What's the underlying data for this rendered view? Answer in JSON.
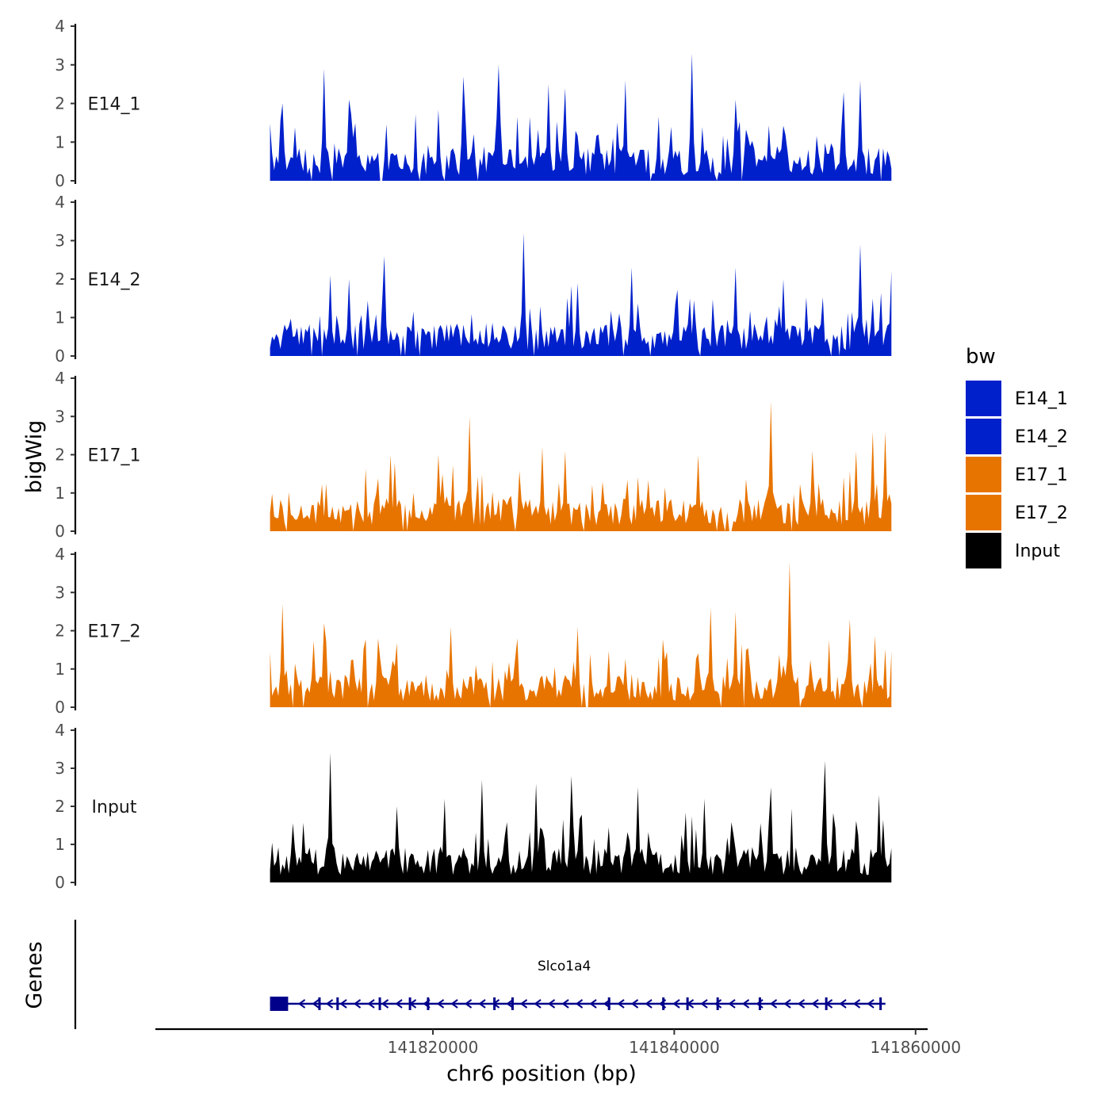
{
  "chart_data": {
    "type": "area",
    "title": "",
    "ylabel": "bigWig",
    "xlabel": "chr6 position (bp)",
    "chromosome": "chr6",
    "xlim": [
      141797000,
      141861000
    ],
    "data_x_range": [
      141806500,
      141858000
    ],
    "ylim": [
      0,
      4
    ],
    "y_ticks": [
      0,
      1,
      2,
      3,
      4
    ],
    "y_tick_labels": [
      "0",
      "1",
      "2",
      "3",
      "4"
    ],
    "x_ticks": [
      141820000,
      141840000,
      141860000
    ],
    "x_tick_labels": [
      "141820000",
      "141840000",
      "141860000"
    ],
    "legend": {
      "title": "bw",
      "position": "right",
      "entries": [
        {
          "label": "E14_1",
          "color": "#0020CC"
        },
        {
          "label": "E14_2",
          "color": "#0020CC"
        },
        {
          "label": "E17_1",
          "color": "#E87400"
        },
        {
          "label": "E17_2",
          "color": "#E87400"
        },
        {
          "label": "Input",
          "color": "#000000"
        }
      ]
    },
    "tracks": [
      {
        "name": "E14_1",
        "color": "#0020CC",
        "bins": 300,
        "max_value": 3.3,
        "peaks": [
          [
            141807500,
            2.0
          ],
          [
            141811000,
            2.9
          ],
          [
            141813000,
            2.1
          ],
          [
            141822500,
            2.7
          ],
          [
            141825500,
            3.0
          ],
          [
            141829500,
            2.5
          ],
          [
            141831000,
            2.4
          ],
          [
            141836000,
            2.6
          ],
          [
            141841500,
            3.3
          ],
          [
            141845000,
            2.1
          ],
          [
            141855500,
            2.6
          ],
          [
            141854000,
            2.3
          ]
        ]
      },
      {
        "name": "E14_2",
        "color": "#0020CC",
        "bins": 300,
        "max_value": 3.2,
        "peaks": [
          [
            141816000,
            2.6
          ],
          [
            141811500,
            2.1
          ],
          [
            141813000,
            2.0
          ],
          [
            141827500,
            3.2
          ],
          [
            141832000,
            1.9
          ],
          [
            141836500,
            2.3
          ],
          [
            141845000,
            2.3
          ],
          [
            141849000,
            2.0
          ],
          [
            141855500,
            2.9
          ],
          [
            141858000,
            2.2
          ]
        ]
      },
      {
        "name": "E17_1",
        "color": "#E87400",
        "bins": 300,
        "max_value": 3.4,
        "peaks": [
          [
            141816500,
            2.0
          ],
          [
            141823000,
            3.0
          ],
          [
            141820500,
            2.0
          ],
          [
            141829000,
            2.2
          ],
          [
            141831000,
            2.1
          ],
          [
            141842000,
            2.0
          ],
          [
            141848000,
            3.4
          ],
          [
            141851500,
            2.1
          ],
          [
            141855000,
            2.1
          ],
          [
            141856500,
            2.6
          ],
          [
            141857500,
            2.6
          ]
        ]
      },
      {
        "name": "E17_2",
        "color": "#E87400",
        "bins": 300,
        "max_value": 3.8,
        "peaks": [
          [
            141807500,
            2.7
          ],
          [
            141811000,
            2.2
          ],
          [
            141815500,
            1.8
          ],
          [
            141821500,
            2.1
          ],
          [
            141827000,
            1.8
          ],
          [
            141832000,
            2.1
          ],
          [
            141843000,
            2.6
          ],
          [
            141845000,
            2.5
          ],
          [
            141849500,
            3.8
          ],
          [
            141854500,
            2.3
          ]
        ]
      },
      {
        "name": "Input",
        "color": "#000000",
        "bins": 300,
        "max_value": 3.4,
        "peaks": [
          [
            141811500,
            3.4
          ],
          [
            141817000,
            2.0
          ],
          [
            141821000,
            2.2
          ],
          [
            141824000,
            2.7
          ],
          [
            141828500,
            2.6
          ],
          [
            141831500,
            2.8
          ],
          [
            141837000,
            2.5
          ],
          [
            141842500,
            2.2
          ],
          [
            141848000,
            2.5
          ],
          [
            141852500,
            3.2
          ],
          [
            141857000,
            2.3
          ]
        ]
      }
    ],
    "genes_panel": {
      "ylabel": "Genes",
      "genes": [
        {
          "name": "Slco1a4",
          "start": 141806500,
          "end": 141857500,
          "strand": "-",
          "color": "#00008B",
          "exons": [
            [
              141806500,
              141808000
            ],
            [
              141810500,
              141810600
            ],
            [
              141812000,
              141812100
            ],
            [
              141815500,
              141815650
            ],
            [
              141818000,
              141818100
            ],
            [
              141819500,
              141819650
            ],
            [
              141825000,
              141825150
            ],
            [
              141826500,
              141826600
            ],
            [
              141834500,
              141834600
            ],
            [
              141839000,
              141839150
            ],
            [
              141841000,
              141841150
            ],
            [
              141843500,
              141843600
            ],
            [
              141847000,
              141847100
            ],
            [
              141852500,
              141852650
            ],
            [
              141857000,
              141857100
            ]
          ]
        }
      ]
    }
  }
}
